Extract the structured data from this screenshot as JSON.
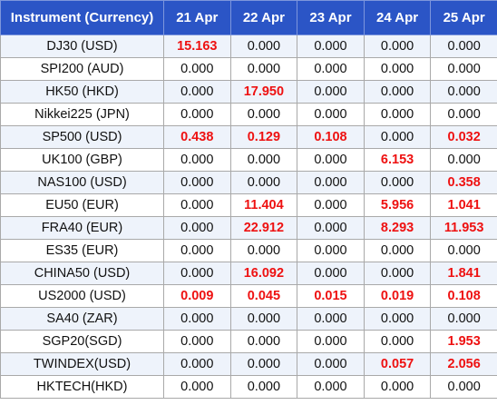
{
  "table": {
    "columns": [
      "Instrument (Currency)",
      "21 Apr",
      "22 Apr",
      "23 Apr",
      "24 Apr",
      "25 Apr"
    ],
    "highlight_color": "#ee1111",
    "header_color": "#2b55c6",
    "rows": [
      {
        "instrument": "DJ30 (USD)",
        "values": [
          "15.163",
          "0.000",
          "0.000",
          "0.000",
          "0.000"
        ],
        "highlight": [
          true,
          false,
          false,
          false,
          false
        ]
      },
      {
        "instrument": "SPI200 (AUD)",
        "values": [
          "0.000",
          "0.000",
          "0.000",
          "0.000",
          "0.000"
        ],
        "highlight": [
          false,
          false,
          false,
          false,
          false
        ]
      },
      {
        "instrument": "HK50 (HKD)",
        "values": [
          "0.000",
          "17.950",
          "0.000",
          "0.000",
          "0.000"
        ],
        "highlight": [
          false,
          true,
          false,
          false,
          false
        ]
      },
      {
        "instrument": "Nikkei225 (JPN)",
        "values": [
          "0.000",
          "0.000",
          "0.000",
          "0.000",
          "0.000"
        ],
        "highlight": [
          false,
          false,
          false,
          false,
          false
        ]
      },
      {
        "instrument": "SP500 (USD)",
        "values": [
          "0.438",
          "0.129",
          "0.108",
          "0.000",
          "0.032"
        ],
        "highlight": [
          true,
          true,
          true,
          false,
          true
        ]
      },
      {
        "instrument": "UK100 (GBP)",
        "values": [
          "0.000",
          "0.000",
          "0.000",
          "6.153",
          "0.000"
        ],
        "highlight": [
          false,
          false,
          false,
          true,
          false
        ]
      },
      {
        "instrument": "NAS100 (USD)",
        "values": [
          "0.000",
          "0.000",
          "0.000",
          "0.000",
          "0.358"
        ],
        "highlight": [
          false,
          false,
          false,
          false,
          true
        ]
      },
      {
        "instrument": "EU50 (EUR)",
        "values": [
          "0.000",
          "11.404",
          "0.000",
          "5.956",
          "1.041"
        ],
        "highlight": [
          false,
          true,
          false,
          true,
          true
        ]
      },
      {
        "instrument": "FRA40 (EUR)",
        "values": [
          "0.000",
          "22.912",
          "0.000",
          "8.293",
          "11.953"
        ],
        "highlight": [
          false,
          true,
          false,
          true,
          true
        ]
      },
      {
        "instrument": "ES35 (EUR)",
        "values": [
          "0.000",
          "0.000",
          "0.000",
          "0.000",
          "0.000"
        ],
        "highlight": [
          false,
          false,
          false,
          false,
          false
        ]
      },
      {
        "instrument": "CHINA50 (USD)",
        "values": [
          "0.000",
          "16.092",
          "0.000",
          "0.000",
          "1.841"
        ],
        "highlight": [
          false,
          true,
          false,
          false,
          true
        ]
      },
      {
        "instrument": "US2000 (USD)",
        "values": [
          "0.009",
          "0.045",
          "0.015",
          "0.019",
          "0.108"
        ],
        "highlight": [
          true,
          true,
          true,
          true,
          true
        ]
      },
      {
        "instrument": "SA40 (ZAR)",
        "values": [
          "0.000",
          "0.000",
          "0.000",
          "0.000",
          "0.000"
        ],
        "highlight": [
          false,
          false,
          false,
          false,
          false
        ]
      },
      {
        "instrument": "SGP20(SGD)",
        "values": [
          "0.000",
          "0.000",
          "0.000",
          "0.000",
          "1.953"
        ],
        "highlight": [
          false,
          false,
          false,
          false,
          true
        ]
      },
      {
        "instrument": "TWINDEX(USD)",
        "values": [
          "0.000",
          "0.000",
          "0.000",
          "0.057",
          "2.056"
        ],
        "highlight": [
          false,
          false,
          false,
          true,
          true
        ]
      },
      {
        "instrument": "HKTECH(HKD)",
        "values": [
          "0.000",
          "0.000",
          "0.000",
          "0.000",
          "0.000"
        ],
        "highlight": [
          false,
          false,
          false,
          false,
          false
        ]
      }
    ]
  }
}
